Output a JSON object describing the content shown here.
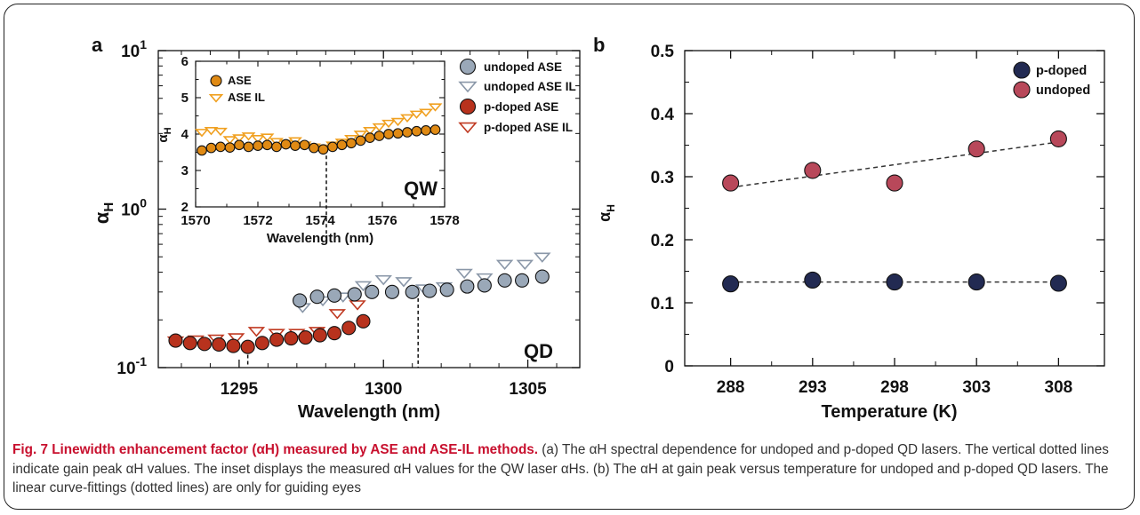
{
  "caption": {
    "title": "Fig. 7 Linewidth enhancement factor (αH) measured by ASE and ASE-IL methods.",
    "body": " (a) The αH spectral dependence for undoped and p-doped QD lasers. The vertical dotted lines indicate gain peak αH values. The inset displays the measured αH values for the QW laser αHs. (b) The αH at gain peak versus temperature for undoped and p-doped QD lasers. The linear curve-fittings (dotted lines) are only for guiding eyes"
  },
  "colors": {
    "undoped_fill": "#9aa8b8",
    "undoped_il": "#8a97a8",
    "pdoped_fill": "#b8321d",
    "pdoped_il": "#c03a22",
    "qw_fill": "#e08a14",
    "qw_il": "#f0a020",
    "b_pdoped": "#222a52",
    "b_undoped": "#b8485a"
  },
  "chart_data": [
    {
      "panel": "a",
      "type": "scatter",
      "xlabel": "Wavelength (nm)",
      "ylabel": "αH",
      "yscale": "log",
      "xlim": [
        1292.2,
        1306.8
      ],
      "ylim": [
        0.1,
        10
      ],
      "xticks": [
        "1295",
        "1300",
        "1305"
      ],
      "yticks": [
        "10-1",
        "100",
        "101"
      ],
      "annotation": "QD",
      "gain_peak_lines_x": [
        1295.3,
        1301.2
      ],
      "legend_position": "top-right",
      "series": [
        {
          "name": "undoped ASE",
          "marker": "circle",
          "x": [
            1297.1,
            1297.7,
            1298.3,
            1299.0,
            1299.6,
            1300.3,
            1301.0,
            1301.6,
            1302.2,
            1302.9,
            1303.5,
            1304.2,
            1304.8,
            1305.5
          ],
          "y": [
            0.265,
            0.28,
            0.285,
            0.29,
            0.3,
            0.3,
            0.3,
            0.305,
            0.31,
            0.325,
            0.33,
            0.355,
            0.355,
            0.375
          ]
        },
        {
          "name": "undoped ASE IL",
          "marker": "triangle-down",
          "x": [
            1297.2,
            1297.9,
            1298.6,
            1299.3,
            1300.0,
            1300.7,
            1301.4,
            1302.1,
            1302.8,
            1303.5,
            1304.2,
            1304.9,
            1305.5
          ],
          "y": [
            0.24,
            0.265,
            0.28,
            0.33,
            0.36,
            0.35,
            0.315,
            0.325,
            0.395,
            0.37,
            0.45,
            0.45,
            0.5
          ]
        },
        {
          "name": "p-doped ASE",
          "marker": "circle",
          "x": [
            1292.8,
            1293.3,
            1293.8,
            1294.3,
            1294.8,
            1295.3,
            1295.8,
            1296.3,
            1296.8,
            1297.3,
            1297.8,
            1298.3,
            1298.8,
            1299.3
          ],
          "y": [
            0.148,
            0.143,
            0.141,
            0.14,
            0.137,
            0.135,
            0.143,
            0.15,
            0.153,
            0.155,
            0.16,
            0.165,
            0.178,
            0.196
          ]
        },
        {
          "name": "p-doped ASE IL",
          "marker": "triangle-down",
          "x": [
            1292.8,
            1293.5,
            1294.2,
            1294.9,
            1295.6,
            1296.3,
            1297.0,
            1297.7,
            1298.4,
            1299.1
          ],
          "y": [
            0.148,
            0.15,
            0.152,
            0.155,
            0.17,
            0.165,
            0.165,
            0.17,
            0.22,
            0.25
          ]
        }
      ],
      "inset": {
        "type": "scatter",
        "xlabel": "Wavelength (nm)",
        "ylabel": "αH",
        "xlim": [
          1570,
          1578
        ],
        "ylim": [
          2,
          6
        ],
        "xticks": [
          "1570",
          "1572",
          "1574",
          "1576",
          "1578"
        ],
        "yticks": [
          "2",
          "3",
          "4",
          "5",
          "6"
        ],
        "annotation": "QW",
        "gain_peak_line_x": 1574.2,
        "legend_position": "top-left",
        "series": [
          {
            "name": "ASE",
            "marker": "circle",
            "x": [
              1570.2,
              1570.5,
              1570.8,
              1571.1,
              1571.4,
              1571.7,
              1572.0,
              1572.3,
              1572.6,
              1572.9,
              1573.2,
              1573.5,
              1573.8,
              1574.1,
              1574.4,
              1574.7,
              1575.0,
              1575.3,
              1575.6,
              1575.9,
              1576.2,
              1576.5,
              1576.8,
              1577.1,
              1577.4,
              1577.7
            ],
            "y": [
              3.55,
              3.62,
              3.65,
              3.63,
              3.7,
              3.65,
              3.68,
              3.7,
              3.65,
              3.72,
              3.68,
              3.7,
              3.62,
              3.58,
              3.65,
              3.7,
              3.75,
              3.82,
              3.9,
              3.95,
              4.0,
              4.02,
              4.05,
              4.08,
              4.1,
              4.12
            ]
          },
          {
            "name": "ASE IL",
            "marker": "triangle-down",
            "x": [
              1570.2,
              1570.5,
              1570.8,
              1571.1,
              1571.4,
              1571.7,
              1572.0,
              1572.3,
              1572.6,
              1572.9,
              1573.2,
              1573.5,
              1573.8,
              1574.1,
              1574.4,
              1574.7,
              1575.0,
              1575.3,
              1575.6,
              1575.9,
              1576.2,
              1576.5,
              1576.8,
              1577.1,
              1577.4,
              1577.7
            ],
            "y": [
              4.05,
              4.1,
              4.08,
              3.85,
              3.9,
              3.95,
              3.88,
              3.92,
              3.8,
              3.75,
              3.82,
              3.7,
              3.65,
              3.62,
              3.7,
              3.78,
              3.88,
              4.0,
              4.1,
              4.2,
              4.3,
              4.35,
              4.45,
              4.55,
              4.6,
              4.75
            ]
          }
        ]
      }
    },
    {
      "panel": "b",
      "type": "scatter",
      "xlabel": "Temperature (K)",
      "ylabel": "αH",
      "xlim": [
        285.2,
        310.8
      ],
      "ylim": [
        0,
        0.5
      ],
      "xticks": [
        "288",
        "293",
        "298",
        "303",
        "308"
      ],
      "yticks": [
        "0",
        "0.1",
        "0.2",
        "0.3",
        "0.4",
        "0.5"
      ],
      "legend_position": "top-right",
      "series": [
        {
          "name": "p-doped",
          "marker": "circle",
          "x": [
            288,
            293,
            298,
            303,
            308
          ],
          "y": [
            0.13,
            0.136,
            0.133,
            0.133,
            0.131
          ]
        },
        {
          "name": "undoped",
          "marker": "circle",
          "x": [
            288,
            293,
            298,
            303,
            308
          ],
          "y": [
            0.29,
            0.31,
            0.29,
            0.344,
            0.36
          ]
        }
      ],
      "fits": [
        {
          "x": [
            288,
            308
          ],
          "y": [
            0.133,
            0.133
          ]
        },
        {
          "x": [
            288,
            308
          ],
          "y": [
            0.283,
            0.355
          ]
        }
      ]
    }
  ]
}
